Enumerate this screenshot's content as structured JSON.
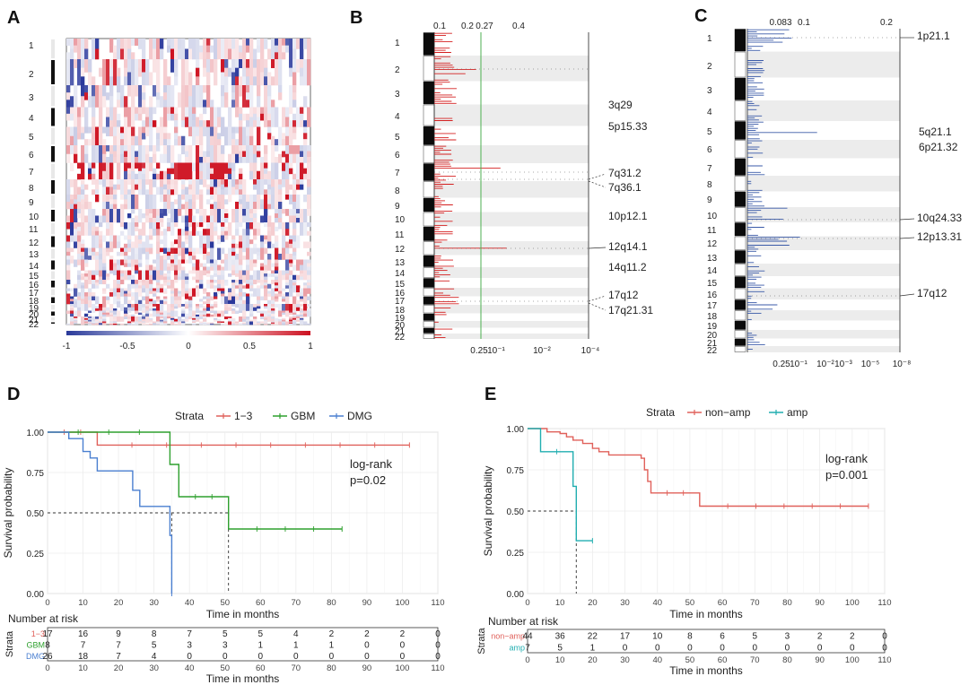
{
  "chart_data": [
    {
      "panel": "A",
      "type": "heatmap",
      "chromosome_labels": [
        "1",
        "2",
        "3",
        "4",
        "5",
        "6",
        "7",
        "8",
        "9",
        "10",
        "11",
        "12",
        "13",
        "14",
        "15",
        "16",
        "17",
        "18",
        "19",
        "20",
        "21",
        "22"
      ],
      "colorbar": {
        "ticks": [
          "-1",
          "-0.5",
          "0",
          "0.5",
          "1"
        ],
        "range": [
          -1,
          1
        ],
        "colors": {
          "low": "#2a3a9a",
          "mid": "#ffffff",
          "high": "#cc1020"
        }
      }
    },
    {
      "panel": "B",
      "type": "bar",
      "top_ticks": [
        "0.1",
        "0.2",
        "0.27",
        "0.4"
      ],
      "bottom_ticks": [
        "0.25",
        "10⁻¹",
        "10⁻²",
        "10⁻⁴"
      ],
      "threshold_color": "#4caf50",
      "chromosome_labels": [
        "1",
        "2",
        "3",
        "4",
        "5",
        "6",
        "7",
        "8",
        "9",
        "10",
        "11",
        "12",
        "13",
        "14",
        "15",
        "16",
        "17",
        "18",
        "19",
        "20",
        "21",
        "22"
      ],
      "regions": [
        "3q29",
        "5p15.33",
        "7q31.2",
        "7q36.1",
        "10p12.1",
        "12q14.1",
        "14q11.2",
        "17q12",
        "17q21.31"
      ],
      "bar_color": "#d42020"
    },
    {
      "panel": "C",
      "type": "bar",
      "top_ticks": [
        "0.083",
        "0.1",
        "0.2"
      ],
      "bottom_ticks": [
        "0.25",
        "10⁻¹",
        "10⁻²",
        "10⁻³",
        "10⁻⁵",
        "10⁻⁸"
      ],
      "chromosome_labels": [
        "1",
        "2",
        "3",
        "4",
        "5",
        "6",
        "7",
        "8",
        "9",
        "10",
        "11",
        "12",
        "13",
        "14",
        "15",
        "16",
        "17",
        "18",
        "19",
        "20",
        "21",
        "22"
      ],
      "regions": [
        "1p21.1",
        "5q21.1",
        "6p21.32",
        "10q24.33",
        "12p13.31",
        "17q12"
      ],
      "bar_color": "#3a5aa8"
    },
    {
      "panel": "D",
      "type": "line",
      "legend_title": "Strata",
      "series": [
        {
          "name": "1−3",
          "color": "#e0605a",
          "times": [
            0,
            14,
            102
          ],
          "surv": [
            1.0,
            0.92,
            0.92
          ]
        },
        {
          "name": "GBM",
          "color": "#2ea02e",
          "times": [
            0,
            34.5,
            37,
            51,
            83
          ],
          "surv": [
            1.0,
            0.8,
            0.6,
            0.4,
            0.4
          ]
        },
        {
          "name": "DMG",
          "color": "#4a7fd0",
          "times": [
            0,
            6,
            10,
            12,
            14,
            17,
            24,
            26,
            33,
            34,
            34.5,
            35
          ],
          "surv": [
            1.0,
            0.96,
            0.88,
            0.84,
            0.76,
            0.76,
            0.64,
            0.54,
            0.54,
            0.54,
            0.36,
            0.0
          ]
        }
      ],
      "xlabel": "Time in months",
      "ylabel": "Survival probability",
      "x_ticks": [
        0,
        10,
        20,
        30,
        40,
        50,
        60,
        70,
        80,
        90,
        100,
        110
      ],
      "y_ticks": [
        "0.00",
        "0.25",
        "0.50",
        "0.75",
        "1.00"
      ],
      "xlim": [
        0,
        110
      ],
      "ylim": [
        0,
        1
      ],
      "annotation": [
        "log-rank",
        "p=0.02"
      ],
      "risk_table": {
        "title": "Number at risk",
        "ylabel": "Strata",
        "rows": [
          {
            "name": "1−3",
            "color": "#e0605a",
            "values": [
              "17",
              "16",
              "9",
              "8",
              "7",
              "5",
              "5",
              "4",
              "2",
              "2",
              "2",
              "0"
            ]
          },
          {
            "name": "GBM",
            "color": "#2ea02e",
            "values": [
              "8",
              "7",
              "7",
              "5",
              "3",
              "3",
              "1",
              "1",
              "1",
              "0",
              "0",
              "0"
            ]
          },
          {
            "name": "DMG",
            "color": "#4a7fd0",
            "values": [
              "26",
              "18",
              "7",
              "4",
              "0",
              "0",
              "0",
              "0",
              "0",
              "0",
              "0",
              "0"
            ]
          }
        ]
      }
    },
    {
      "panel": "E",
      "type": "line",
      "legend_title": "Strata",
      "series": [
        {
          "name": "non−amp",
          "color": "#e0605a",
          "times": [
            0,
            2,
            6,
            10,
            12,
            14,
            17,
            20,
            22,
            25,
            28,
            35,
            36,
            37,
            38,
            53,
            105
          ],
          "surv": [
            1.0,
            1.0,
            0.98,
            0.97,
            0.95,
            0.93,
            0.91,
            0.88,
            0.86,
            0.84,
            0.84,
            0.82,
            0.75,
            0.68,
            0.61,
            0.53,
            0.53
          ]
        },
        {
          "name": "amp",
          "color": "#21aeb0",
          "times": [
            0,
            2,
            4,
            14,
            15,
            16,
            20
          ],
          "surv": [
            1.0,
            1.0,
            0.86,
            0.65,
            0.32,
            0.32,
            0.32
          ]
        }
      ],
      "xlabel": "Time in months",
      "ylabel": "Survival probability",
      "x_ticks": [
        0,
        10,
        20,
        30,
        40,
        50,
        60,
        70,
        80,
        90,
        100,
        110
      ],
      "y_ticks": [
        "0.00",
        "0.25",
        "0.50",
        "0.75",
        "1.00"
      ],
      "xlim": [
        0,
        110
      ],
      "ylim": [
        0,
        1
      ],
      "annotation": [
        "log-rank",
        "p=0.001"
      ],
      "risk_table": {
        "title": "Number at risk",
        "ylabel": "Strata",
        "rows": [
          {
            "name": "non−amp",
            "color": "#e0605a",
            "values": [
              "44",
              "36",
              "22",
              "17",
              "10",
              "8",
              "6",
              "5",
              "3",
              "2",
              "2",
              "0"
            ]
          },
          {
            "name": "amp",
            "color": "#21aeb0",
            "values": [
              "7",
              "5",
              "1",
              "0",
              "0",
              "0",
              "0",
              "0",
              "0",
              "0",
              "0",
              "0"
            ]
          }
        ]
      }
    }
  ],
  "panel_labels": [
    "A",
    "B",
    "C",
    "D",
    "E"
  ]
}
